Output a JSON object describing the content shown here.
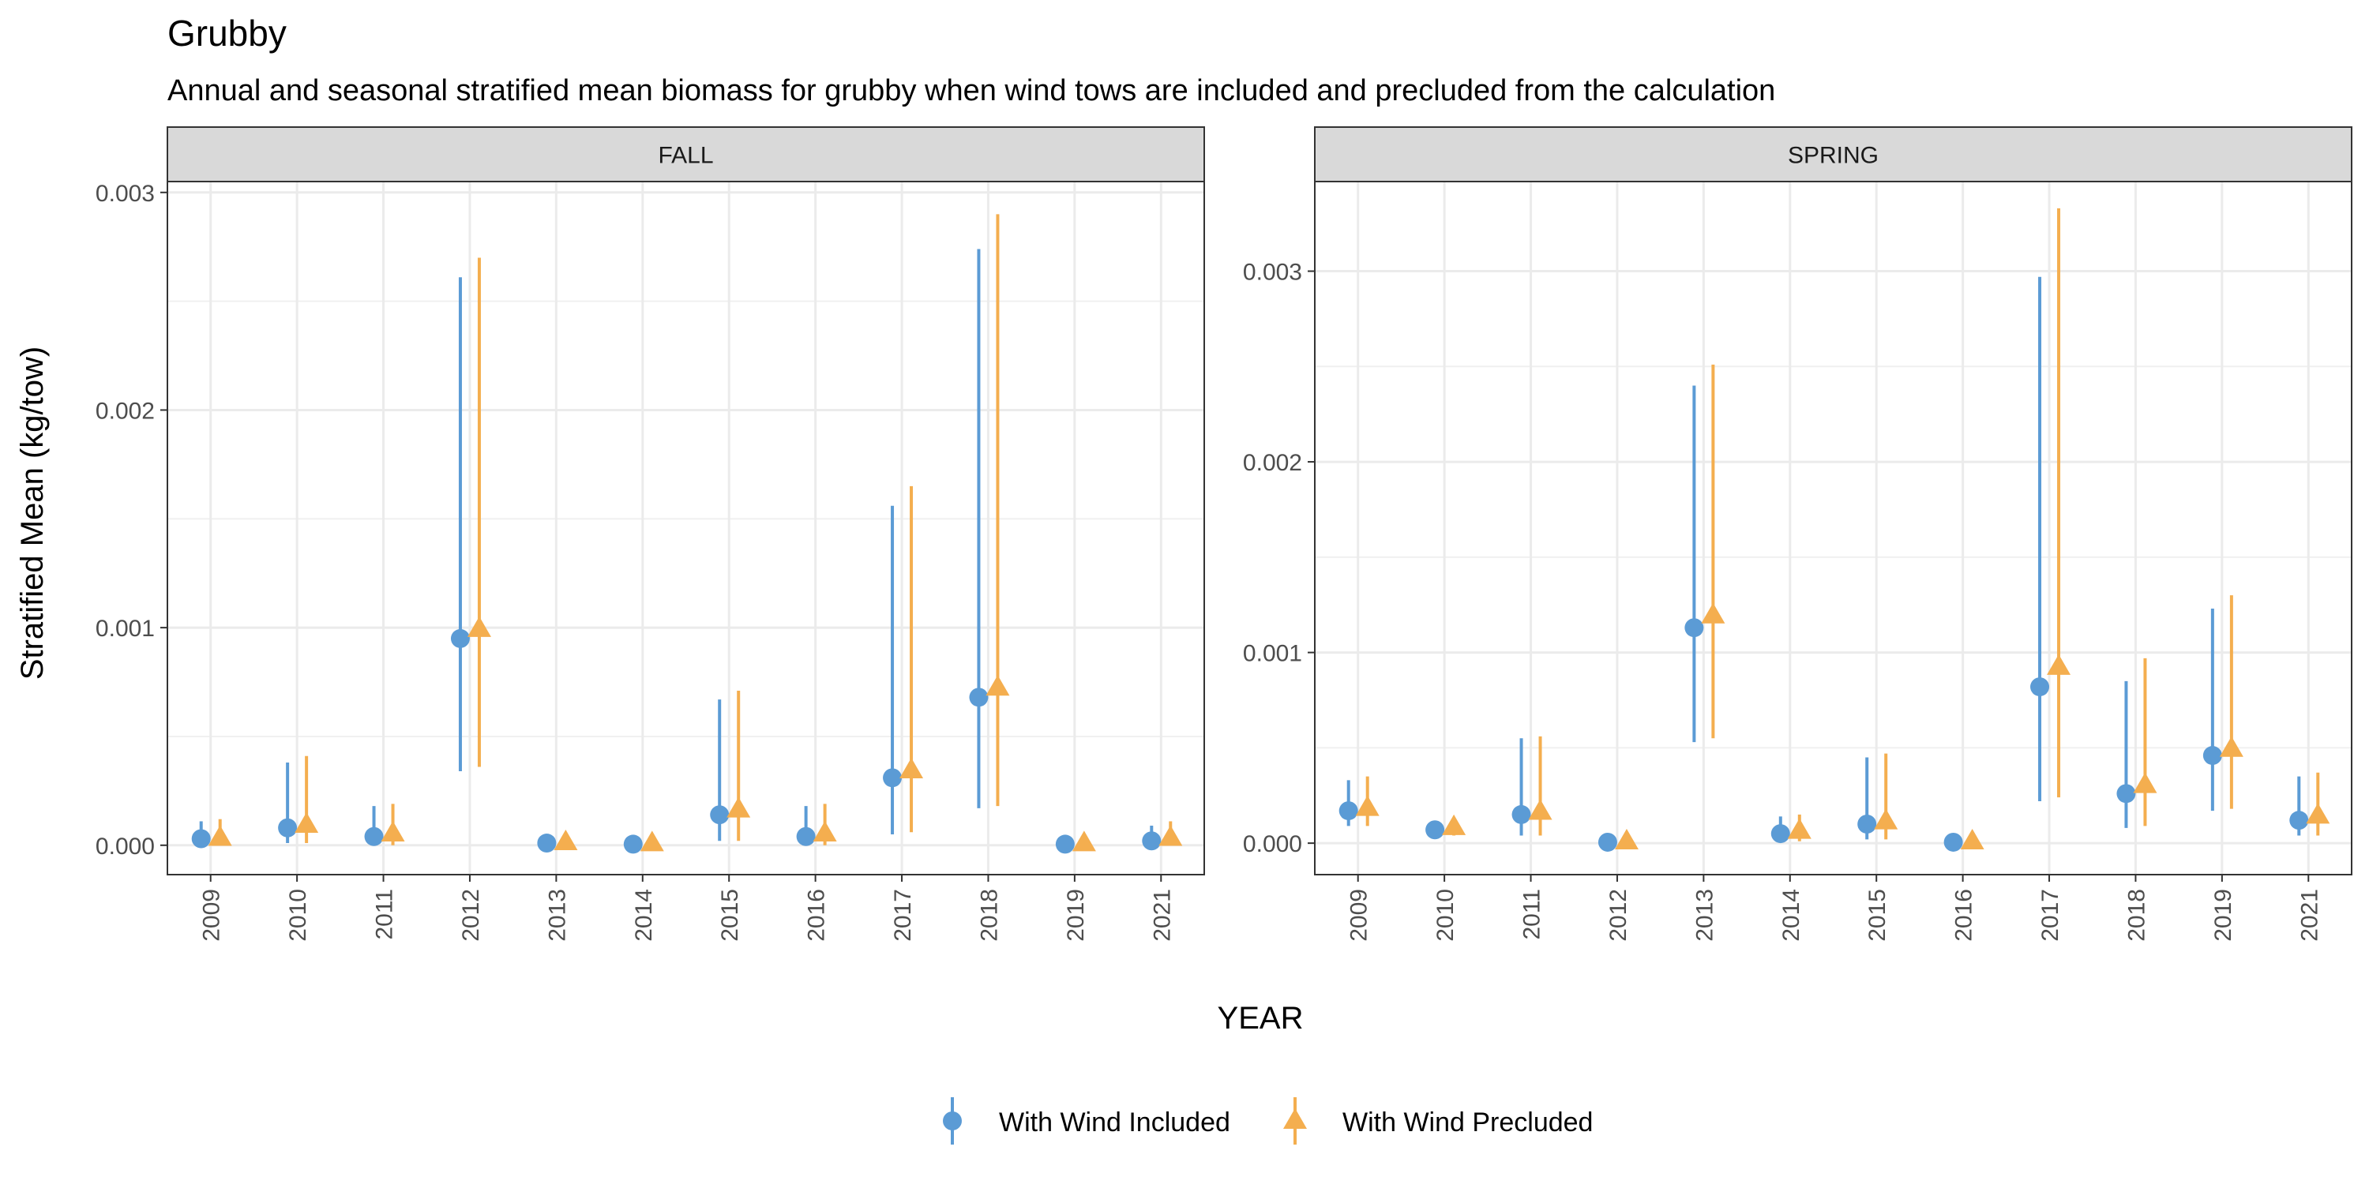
{
  "title": "Grubby",
  "subtitle": "Annual and seasonal stratified mean biomass for grubby when wind tows are included and precluded from the calculation",
  "chart_data": {
    "type": "scatter",
    "xlabel": "YEAR",
    "ylabel": "Stratified Mean (kg/tow)",
    "categories": [
      "2009",
      "2010",
      "2011",
      "2012",
      "2013",
      "2014",
      "2015",
      "2016",
      "2017",
      "2018",
      "2019",
      "2021"
    ],
    "legend_position": "bottom",
    "grid": true,
    "series_styles": [
      {
        "name": "With Wind Included",
        "color": "#5B9BD5",
        "marker": "circle"
      },
      {
        "name": "With Wind Precluded",
        "color": "#F4AE4F",
        "marker": "triangle"
      }
    ],
    "panels": [
      {
        "label": "FALL",
        "ylim": [
          -0.000135,
          0.00305
        ],
        "yticks": [
          0,
          0.001,
          0.002,
          0.003
        ],
        "ytick_labels": [
          "0.000",
          "0.001",
          "0.002",
          "0.003"
        ],
        "series": [
          {
            "name": "With Wind Included",
            "values": [
              3e-05,
              8e-05,
              4e-05,
              0.00095,
              1e-05,
              5e-06,
              0.00014,
              4e-05,
              0.00031,
              0.00068,
              5e-06,
              2e-05
            ],
            "lower": [
              0.0,
              1e-05,
              0.0,
              0.00034,
              0.0,
              0.0,
              2e-05,
              0.0,
              5e-05,
              0.00017,
              0.0,
              0.0
            ],
            "upper": [
              0.00011,
              0.00038,
              0.00018,
              0.00261,
              2e-05,
              1e-05,
              0.00067,
              0.00018,
              0.00156,
              0.00274,
              1e-05,
              9e-05
            ]
          },
          {
            "name": "With Wind Precluded",
            "values": [
              3e-05,
              9e-05,
              5e-05,
              0.00099,
              1e-05,
              5e-06,
              0.00016,
              5e-05,
              0.00034,
              0.00072,
              5e-06,
              3e-05
            ],
            "lower": [
              0.0,
              1e-05,
              0.0,
              0.00036,
              0.0,
              0.0,
              2e-05,
              0.0,
              6e-05,
              0.00018,
              0.0,
              0.0
            ],
            "upper": [
              0.00012,
              0.00041,
              0.00019,
              0.0027,
              2e-05,
              1e-05,
              0.00071,
              0.00019,
              0.00165,
              0.0029,
              1e-05,
              0.00011
            ]
          }
        ]
      },
      {
        "label": "SPRING",
        "ylim": [
          -0.000165,
          0.00347
        ],
        "yticks": [
          0,
          0.001,
          0.002,
          0.003
        ],
        "ytick_labels": [
          "0.000",
          "0.001",
          "0.002",
          "0.003"
        ],
        "series": [
          {
            "name": "With Wind Included",
            "values": [
              0.00017,
              7e-05,
              0.00015,
              5e-06,
              0.00113,
              5e-05,
              0.0001,
              5e-06,
              0.00082,
              0.00026,
              0.00046,
              0.00012
            ],
            "lower": [
              9e-05,
              4e-05,
              4e-05,
              0.0,
              0.00053,
              1e-05,
              2e-05,
              0.0,
              0.00022,
              8e-05,
              0.00017,
              4e-05
            ],
            "upper": [
              0.00033,
              0.00011,
              0.00055,
              1e-05,
              0.0024,
              0.00014,
              0.00045,
              1e-05,
              0.00297,
              0.00085,
              0.00123,
              0.00035
            ]
          },
          {
            "name": "With Wind Precluded",
            "values": [
              0.00018,
              8e-05,
              0.00016,
              5e-06,
              0.00119,
              6e-05,
              0.00011,
              5e-06,
              0.00092,
              0.0003,
              0.00049,
              0.00014
            ],
            "lower": [
              9e-05,
              4e-05,
              4e-05,
              0.0,
              0.00055,
              1e-05,
              2e-05,
              0.0,
              0.00024,
              9e-05,
              0.00018,
              4e-05
            ],
            "upper": [
              0.00035,
              0.00012,
              0.00056,
              1e-05,
              0.00251,
              0.00015,
              0.00047,
              1e-05,
              0.00333,
              0.00097,
              0.0013,
              0.00037
            ]
          }
        ]
      }
    ]
  }
}
